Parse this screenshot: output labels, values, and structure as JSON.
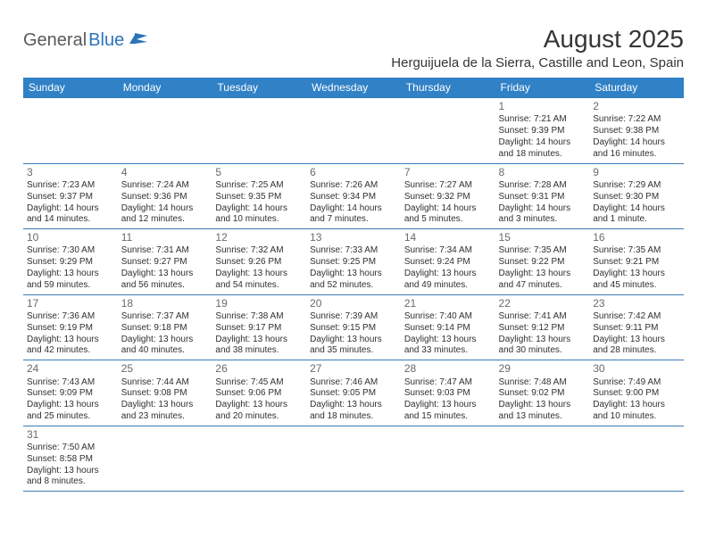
{
  "brand": {
    "general": "General",
    "blue": "Blue"
  },
  "title": "August 2025",
  "location": "Herguijuela de la Sierra, Castille and Leon, Spain",
  "colors": {
    "header_bg": "#3081c6",
    "header_text": "#ffffff",
    "cell_border": "#3a7ab5",
    "daynum": "#6a6a6a",
    "body_text": "#303030",
    "title_text": "#353535",
    "logo_gray": "#5a5a5a",
    "logo_blue": "#2a74b8"
  },
  "day_headers": [
    "Sunday",
    "Monday",
    "Tuesday",
    "Wednesday",
    "Thursday",
    "Friday",
    "Saturday"
  ],
  "weeks": [
    [
      null,
      null,
      null,
      null,
      null,
      {
        "n": "1",
        "sr": "Sunrise: 7:21 AM",
        "ss": "Sunset: 9:39 PM",
        "dl1": "Daylight: 14 hours",
        "dl2": "and 18 minutes."
      },
      {
        "n": "2",
        "sr": "Sunrise: 7:22 AM",
        "ss": "Sunset: 9:38 PM",
        "dl1": "Daylight: 14 hours",
        "dl2": "and 16 minutes."
      }
    ],
    [
      {
        "n": "3",
        "sr": "Sunrise: 7:23 AM",
        "ss": "Sunset: 9:37 PM",
        "dl1": "Daylight: 14 hours",
        "dl2": "and 14 minutes."
      },
      {
        "n": "4",
        "sr": "Sunrise: 7:24 AM",
        "ss": "Sunset: 9:36 PM",
        "dl1": "Daylight: 14 hours",
        "dl2": "and 12 minutes."
      },
      {
        "n": "5",
        "sr": "Sunrise: 7:25 AM",
        "ss": "Sunset: 9:35 PM",
        "dl1": "Daylight: 14 hours",
        "dl2": "and 10 minutes."
      },
      {
        "n": "6",
        "sr": "Sunrise: 7:26 AM",
        "ss": "Sunset: 9:34 PM",
        "dl1": "Daylight: 14 hours",
        "dl2": "and 7 minutes."
      },
      {
        "n": "7",
        "sr": "Sunrise: 7:27 AM",
        "ss": "Sunset: 9:32 PM",
        "dl1": "Daylight: 14 hours",
        "dl2": "and 5 minutes."
      },
      {
        "n": "8",
        "sr": "Sunrise: 7:28 AM",
        "ss": "Sunset: 9:31 PM",
        "dl1": "Daylight: 14 hours",
        "dl2": "and 3 minutes."
      },
      {
        "n": "9",
        "sr": "Sunrise: 7:29 AM",
        "ss": "Sunset: 9:30 PM",
        "dl1": "Daylight: 14 hours",
        "dl2": "and 1 minute."
      }
    ],
    [
      {
        "n": "10",
        "sr": "Sunrise: 7:30 AM",
        "ss": "Sunset: 9:29 PM",
        "dl1": "Daylight: 13 hours",
        "dl2": "and 59 minutes."
      },
      {
        "n": "11",
        "sr": "Sunrise: 7:31 AM",
        "ss": "Sunset: 9:27 PM",
        "dl1": "Daylight: 13 hours",
        "dl2": "and 56 minutes."
      },
      {
        "n": "12",
        "sr": "Sunrise: 7:32 AM",
        "ss": "Sunset: 9:26 PM",
        "dl1": "Daylight: 13 hours",
        "dl2": "and 54 minutes."
      },
      {
        "n": "13",
        "sr": "Sunrise: 7:33 AM",
        "ss": "Sunset: 9:25 PM",
        "dl1": "Daylight: 13 hours",
        "dl2": "and 52 minutes."
      },
      {
        "n": "14",
        "sr": "Sunrise: 7:34 AM",
        "ss": "Sunset: 9:24 PM",
        "dl1": "Daylight: 13 hours",
        "dl2": "and 49 minutes."
      },
      {
        "n": "15",
        "sr": "Sunrise: 7:35 AM",
        "ss": "Sunset: 9:22 PM",
        "dl1": "Daylight: 13 hours",
        "dl2": "and 47 minutes."
      },
      {
        "n": "16",
        "sr": "Sunrise: 7:35 AM",
        "ss": "Sunset: 9:21 PM",
        "dl1": "Daylight: 13 hours",
        "dl2": "and 45 minutes."
      }
    ],
    [
      {
        "n": "17",
        "sr": "Sunrise: 7:36 AM",
        "ss": "Sunset: 9:19 PM",
        "dl1": "Daylight: 13 hours",
        "dl2": "and 42 minutes."
      },
      {
        "n": "18",
        "sr": "Sunrise: 7:37 AM",
        "ss": "Sunset: 9:18 PM",
        "dl1": "Daylight: 13 hours",
        "dl2": "and 40 minutes."
      },
      {
        "n": "19",
        "sr": "Sunrise: 7:38 AM",
        "ss": "Sunset: 9:17 PM",
        "dl1": "Daylight: 13 hours",
        "dl2": "and 38 minutes."
      },
      {
        "n": "20",
        "sr": "Sunrise: 7:39 AM",
        "ss": "Sunset: 9:15 PM",
        "dl1": "Daylight: 13 hours",
        "dl2": "and 35 minutes."
      },
      {
        "n": "21",
        "sr": "Sunrise: 7:40 AM",
        "ss": "Sunset: 9:14 PM",
        "dl1": "Daylight: 13 hours",
        "dl2": "and 33 minutes."
      },
      {
        "n": "22",
        "sr": "Sunrise: 7:41 AM",
        "ss": "Sunset: 9:12 PM",
        "dl1": "Daylight: 13 hours",
        "dl2": "and 30 minutes."
      },
      {
        "n": "23",
        "sr": "Sunrise: 7:42 AM",
        "ss": "Sunset: 9:11 PM",
        "dl1": "Daylight: 13 hours",
        "dl2": "and 28 minutes."
      }
    ],
    [
      {
        "n": "24",
        "sr": "Sunrise: 7:43 AM",
        "ss": "Sunset: 9:09 PM",
        "dl1": "Daylight: 13 hours",
        "dl2": "and 25 minutes."
      },
      {
        "n": "25",
        "sr": "Sunrise: 7:44 AM",
        "ss": "Sunset: 9:08 PM",
        "dl1": "Daylight: 13 hours",
        "dl2": "and 23 minutes."
      },
      {
        "n": "26",
        "sr": "Sunrise: 7:45 AM",
        "ss": "Sunset: 9:06 PM",
        "dl1": "Daylight: 13 hours",
        "dl2": "and 20 minutes."
      },
      {
        "n": "27",
        "sr": "Sunrise: 7:46 AM",
        "ss": "Sunset: 9:05 PM",
        "dl1": "Daylight: 13 hours",
        "dl2": "and 18 minutes."
      },
      {
        "n": "28",
        "sr": "Sunrise: 7:47 AM",
        "ss": "Sunset: 9:03 PM",
        "dl1": "Daylight: 13 hours",
        "dl2": "and 15 minutes."
      },
      {
        "n": "29",
        "sr": "Sunrise: 7:48 AM",
        "ss": "Sunset: 9:02 PM",
        "dl1": "Daylight: 13 hours",
        "dl2": "and 13 minutes."
      },
      {
        "n": "30",
        "sr": "Sunrise: 7:49 AM",
        "ss": "Sunset: 9:00 PM",
        "dl1": "Daylight: 13 hours",
        "dl2": "and 10 minutes."
      }
    ],
    [
      {
        "n": "31",
        "sr": "Sunrise: 7:50 AM",
        "ss": "Sunset: 8:58 PM",
        "dl1": "Daylight: 13 hours",
        "dl2": "and 8 minutes."
      },
      null,
      null,
      null,
      null,
      null,
      null
    ]
  ]
}
